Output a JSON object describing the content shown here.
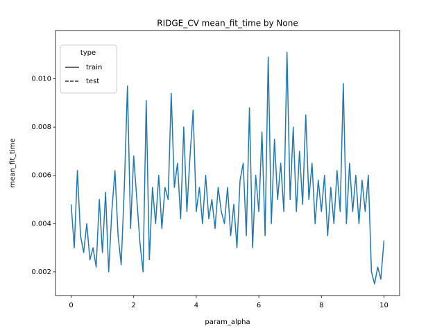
{
  "chart_data": {
    "type": "line",
    "title": "RIDGE_CV mean_fit_time by None",
    "x_label": "param_alpha",
    "y_label": "mean_fit_time",
    "x": [
      0,
      0.1,
      0.2,
      0.3,
      0.4,
      0.5,
      0.6,
      0.7,
      0.8,
      0.9,
      1,
      1.1,
      1.2,
      1.3,
      1.4,
      1.5,
      1.6,
      1.7,
      1.8,
      1.9,
      2,
      2.1,
      2.2,
      2.3,
      2.4,
      2.5,
      2.6,
      2.7,
      2.8,
      2.9,
      3,
      3.1,
      3.2,
      3.3,
      3.4,
      3.5,
      3.6,
      3.7,
      3.8,
      3.9,
      4,
      4.1,
      4.2,
      4.3,
      4.4,
      4.5,
      4.6,
      4.7,
      4.8,
      4.9,
      5,
      5.1,
      5.2,
      5.3,
      5.4,
      5.5,
      5.6,
      5.7,
      5.8,
      5.9,
      6,
      6.1,
      6.2,
      6.3,
      6.4,
      6.5,
      6.6,
      6.7,
      6.8,
      6.9,
      7,
      7.1,
      7.2,
      7.3,
      7.4,
      7.5,
      7.6,
      7.7,
      7.8,
      7.9,
      8,
      8.1,
      8.2,
      8.3,
      8.4,
      8.5,
      8.6,
      8.7,
      8.8,
      8.9,
      9,
      9.1,
      9.2,
      9.3,
      9.4,
      9.5,
      9.6,
      9.7,
      9.8,
      9.9,
      10
    ],
    "series": [
      {
        "color": "#1f77b4",
        "values": [
          0.0048,
          0.003,
          0.0062,
          0.0035,
          0.0028,
          0.004,
          0.0025,
          0.003,
          0.0022,
          0.005,
          0.0028,
          0.0053,
          0.002,
          0.0045,
          0.0062,
          0.0035,
          0.0023,
          0.0055,
          0.0097,
          0.0038,
          0.0068,
          0.005,
          0.0032,
          0.002,
          0.0091,
          0.0025,
          0.0055,
          0.004,
          0.006,
          0.0038,
          0.0055,
          0.005,
          0.0094,
          0.0055,
          0.0065,
          0.0042,
          0.008,
          0.0045,
          0.0068,
          0.0087,
          0.0045,
          0.0055,
          0.004,
          0.006,
          0.0042,
          0.005,
          0.0038,
          0.0055,
          0.0045,
          0.004,
          0.0055,
          0.0035,
          0.0048,
          0.003,
          0.0058,
          0.0065,
          0.0035,
          0.0088,
          0.003,
          0.006,
          0.0045,
          0.0078,
          0.0035,
          0.0109,
          0.004,
          0.0075,
          0.005,
          0.0065,
          0.0045,
          0.0111,
          0.005,
          0.008,
          0.0045,
          0.007,
          0.0048,
          0.0085,
          0.005,
          0.0065,
          0.004,
          0.0058,
          0.0045,
          0.006,
          0.0035,
          0.0055,
          0.004,
          0.0062,
          0.0045,
          0.0098,
          0.004,
          0.0065,
          0.0045,
          0.006,
          0.004,
          0.0058,
          0.0045,
          0.006,
          0.002,
          0.0015,
          0.0022,
          0.0017,
          0.0033
        ]
      }
    ],
    "legend": {
      "title": "type",
      "position": "upper left",
      "entries": [
        {
          "name": "train",
          "dash": "solid"
        },
        {
          "name": "test",
          "dash": "dashed"
        }
      ]
    },
    "xlim": [
      -0.5,
      10.5
    ],
    "xticks": [
      0,
      2,
      4,
      6,
      8,
      10
    ],
    "ylim": [
      0.00102,
      0.012
    ],
    "yticks": [
      0.002,
      0.004,
      0.006,
      0.008,
      {
        "value": 0.01,
        "label": "0.010"
      }
    ],
    "grid": false
  }
}
